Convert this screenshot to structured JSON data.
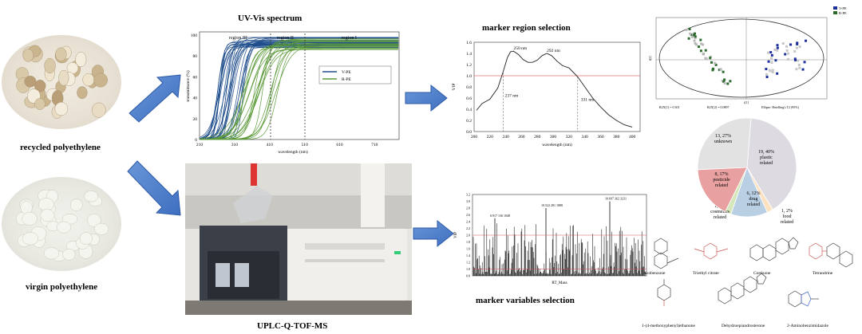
{
  "captions": {
    "recycled": "recycled polyethylene",
    "virgin": "virgin polyethylene",
    "uvvis": "UV-Vis spectrum",
    "uplc": "UPLC-Q-TOF-MS",
    "marker_region": "marker region selection",
    "marker_vars": "marker variables selection"
  },
  "uv_plot": {
    "regions": [
      "region III",
      "region II",
      "region I"
    ],
    "xlabel": "wavelength (nm)",
    "ylabel": "transmittance (%)",
    "xticks": [
      "210",
      "310",
      "410",
      "510",
      "610",
      "710"
    ],
    "yticks": [
      "0",
      "20",
      "40",
      "60",
      "80",
      "100"
    ],
    "legend": [
      "V-PE",
      "R-PE"
    ],
    "colors": {
      "vpe": "#1f4e8c",
      "rpe": "#5c9a3a"
    }
  },
  "chart_data": [
    {
      "type": "line",
      "title": "",
      "xlabel": "wavelength (nm)",
      "ylabel": "VIP",
      "xlim": [
        200,
        410
      ],
      "ylim": [
        0.0,
        1.6
      ],
      "x": [
        203,
        210,
        220,
        230,
        237,
        242,
        246,
        250,
        256,
        262,
        268,
        274,
        280,
        286,
        292,
        298,
        305,
        312,
        320,
        331,
        340,
        350,
        360,
        370,
        380,
        390,
        400
      ],
      "y": [
        0.38,
        0.5,
        0.58,
        0.78,
        1.08,
        1.32,
        1.43,
        1.44,
        1.38,
        1.29,
        1.24,
        1.24,
        1.28,
        1.36,
        1.4,
        1.36,
        1.26,
        1.18,
        1.14,
        0.98,
        0.8,
        0.6,
        0.44,
        0.3,
        0.2,
        0.12,
        0.08
      ],
      "threshold": 1.0,
      "annotations": [
        "250 nm",
        "292 nm",
        "237 nm",
        "331 nm"
      ],
      "xticks": [
        "200",
        "220",
        "240",
        "260",
        "280",
        "300",
        "320",
        "340",
        "360",
        "380",
        "400"
      ],
      "yticks": [
        "0.0",
        "0.2",
        "0.4",
        "0.6",
        "0.8",
        "1.0",
        "1.2",
        "1.4",
        "1.6"
      ]
    },
    {
      "type": "bar",
      "xlabel": "RT_Mass",
      "ylabel": "VIP",
      "ylim": [
        0,
        3.2
      ],
      "thresholds": [
        1.0,
        2.0
      ],
      "peaks": [
        {
          "label": "0.917 136 1048",
          "value": 2.5
        },
        {
          "label": "10.522 281 1888",
          "value": 2.8
        },
        {
          "label": "10.697 362 3231",
          "value": 3.0
        }
      ],
      "yticks": [
        "0.8",
        "1.0",
        "1.2",
        "1.4",
        "1.6",
        "1.8",
        "2.0",
        "2.2",
        "2.4",
        "2.6",
        "2.8",
        "3.0",
        "3.2"
      ]
    },
    {
      "type": "pie",
      "slices": [
        {
          "label": "19, 40%",
          "sub": "plastic related",
          "value": 40,
          "color": "#dddae2"
        },
        {
          "label": "1, 2%",
          "sub": "food related",
          "value": 2,
          "color": "#fde2c2"
        },
        {
          "label": "6, 12%",
          "sub": "drug related",
          "value": 12,
          "color": "#b9cfe3"
        },
        {
          "label": "1, 2%",
          "sub": "cosmetics related",
          "value": 2,
          "color": "#d6e7bc"
        },
        {
          "label": "8, 17%",
          "sub": "pesticide related",
          "value": 17,
          "color": "#e9a0a0"
        },
        {
          "label": "13, 27%",
          "sub": "unknown",
          "value": 27,
          "color": "#e2e2e2"
        }
      ]
    }
  ],
  "score_plot": {
    "legend": [
      "V-PE",
      "R-PE"
    ],
    "footer": [
      "R2X[1] = 0.301",
      "R2X[2] = 0.0897",
      "Ellipse: Hotelling's T2 (95%)"
    ],
    "xlabel": "t[1]",
    "ylabel": "t[2]"
  },
  "compounds": [
    "Avobenzone",
    "Triethyl citrate",
    "Cortisone",
    "Tetrandrine",
    "1-(4-methoxyphenyl)ethanone",
    "Dehydroepiandrosterone",
    "2-Aminobenzimidazole"
  ]
}
